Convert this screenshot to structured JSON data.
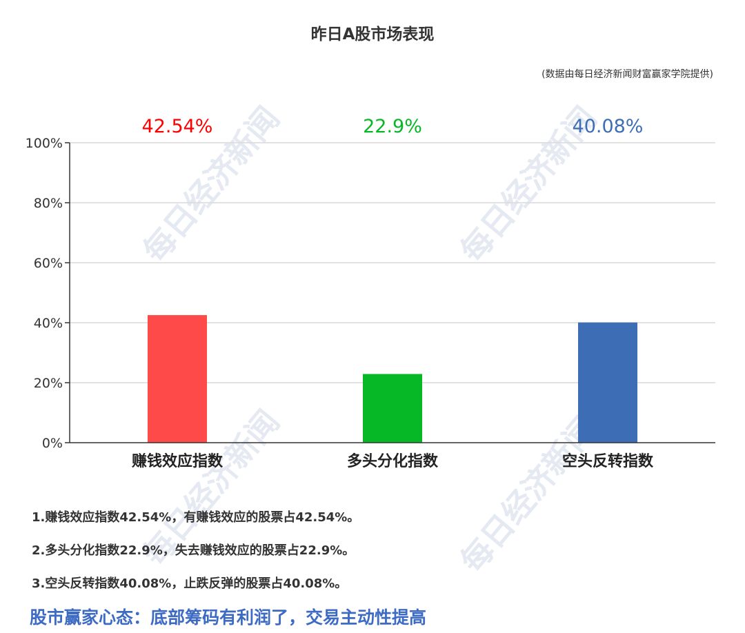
{
  "title": "昨日A股市场表现",
  "source": "(数据由每日经济新闻财富赢家学院提供)",
  "watermark": "每日经济新闻",
  "chart_data": {
    "type": "bar",
    "categories": [
      "赚钱效应指数",
      "多头分化指数",
      "空头反转指数"
    ],
    "values": [
      42.54,
      22.9,
      40.08
    ],
    "data_labels": [
      "42.54%",
      "22.9%",
      "40.08%"
    ],
    "colors": [
      "#ff4a4a",
      "#06b826",
      "#3d6db5"
    ],
    "label_colors": [
      "#ff0000",
      "#06b826",
      "#3d6db5"
    ],
    "ylim": [
      0,
      100
    ],
    "yticks": [
      0,
      20,
      40,
      60,
      80,
      100
    ],
    "ytick_labels": [
      "0%",
      "20%",
      "40%",
      "60%",
      "80%",
      "100%"
    ],
    "grid": true,
    "xlabel": "",
    "ylabel": ""
  },
  "notes": [
    "1.赚钱效应指数42.54%，有赚钱效应的股票占42.54%。",
    "2.多头分化指数22.9%，失去赚钱效应的股票占22.9%。",
    "3.空头反转指数40.08%，止跌反弹的股票占40.08%。"
  ],
  "headline": "股市赢家心态：底部筹码有利润了，交易主动性提高"
}
